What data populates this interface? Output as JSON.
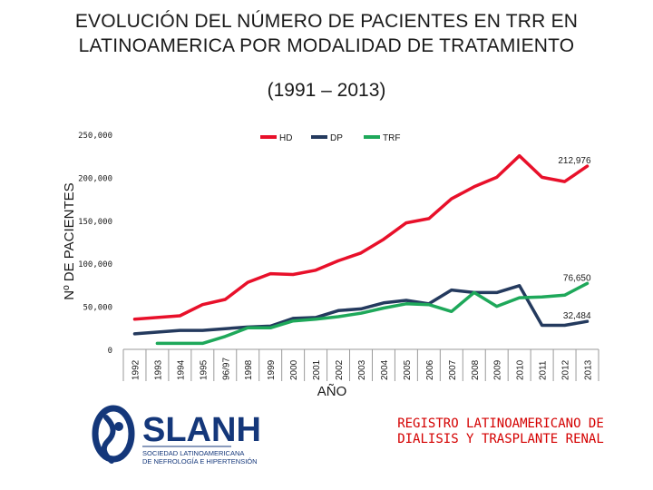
{
  "title_lines": [
    "EVOLUCIÓN DEL NÚMERO DE PACIENTES EN TRR EN",
    "LATINOAMERICA POR MODALIDAD DE TRATAMIENTO"
  ],
  "subtitle": "(1991 – 2013)",
  "footnote_lines": [
    "REGISTRO LATINOAMERICANO DE",
    "DIALISIS Y TRASPLANTE RENAL"
  ],
  "logo": {
    "name": "SLANH",
    "tagline_lines": [
      "SOCIEDAD LATINOAMERICANA",
      "DE NEFROLOGÍA E HIPERTENSIÓN"
    ],
    "color": "#14377a"
  },
  "chart_data": {
    "type": "line",
    "xlabel": "AÑO",
    "ylabel": "Nº DE PACIENTES",
    "ylim": [
      0,
      250000
    ],
    "y_ticks": [
      0,
      50000,
      100000,
      150000,
      200000,
      250000
    ],
    "y_tick_labels": [
      "0",
      "50,000",
      "100,000",
      "150,000",
      "200,000",
      "250,000"
    ],
    "legend_position": "top-center",
    "categories": [
      "1992",
      "1993",
      "1994",
      "1995",
      "96/97",
      "1998",
      "1999",
      "2000",
      "2001",
      "2002",
      "2003",
      "2004",
      "2005",
      "2006",
      "2007",
      "2008",
      "2009",
      "2010",
      "2011",
      "2012",
      "2013"
    ],
    "series": [
      {
        "name": "HD",
        "color": "#e8102a",
        "values": [
          35000,
          37000,
          39000,
          52000,
          58000,
          78000,
          88000,
          87000,
          92000,
          103000,
          112000,
          128000,
          147000,
          152000,
          175000,
          189000,
          200000,
          225000,
          200000,
          195000,
          212976
        ],
        "end_label": "212,976"
      },
      {
        "name": "DP",
        "color": "#243a5e",
        "values": [
          18000,
          20000,
          22000,
          22000,
          24000,
          26000,
          27000,
          36000,
          37000,
          45000,
          47000,
          54000,
          57000,
          53000,
          69000,
          66000,
          66000,
          74000,
          28000,
          28000,
          32484
        ],
        "end_label": "32,484"
      },
      {
        "name": "TRF",
        "color": "#1ea85a",
        "values": [
          null,
          7000,
          7000,
          7000,
          15000,
          25000,
          25000,
          33000,
          35000,
          38000,
          42000,
          48000,
          53000,
          52000,
          44000,
          66000,
          50000,
          60000,
          61000,
          63000,
          76650
        ],
        "end_label": "76,650"
      }
    ]
  }
}
